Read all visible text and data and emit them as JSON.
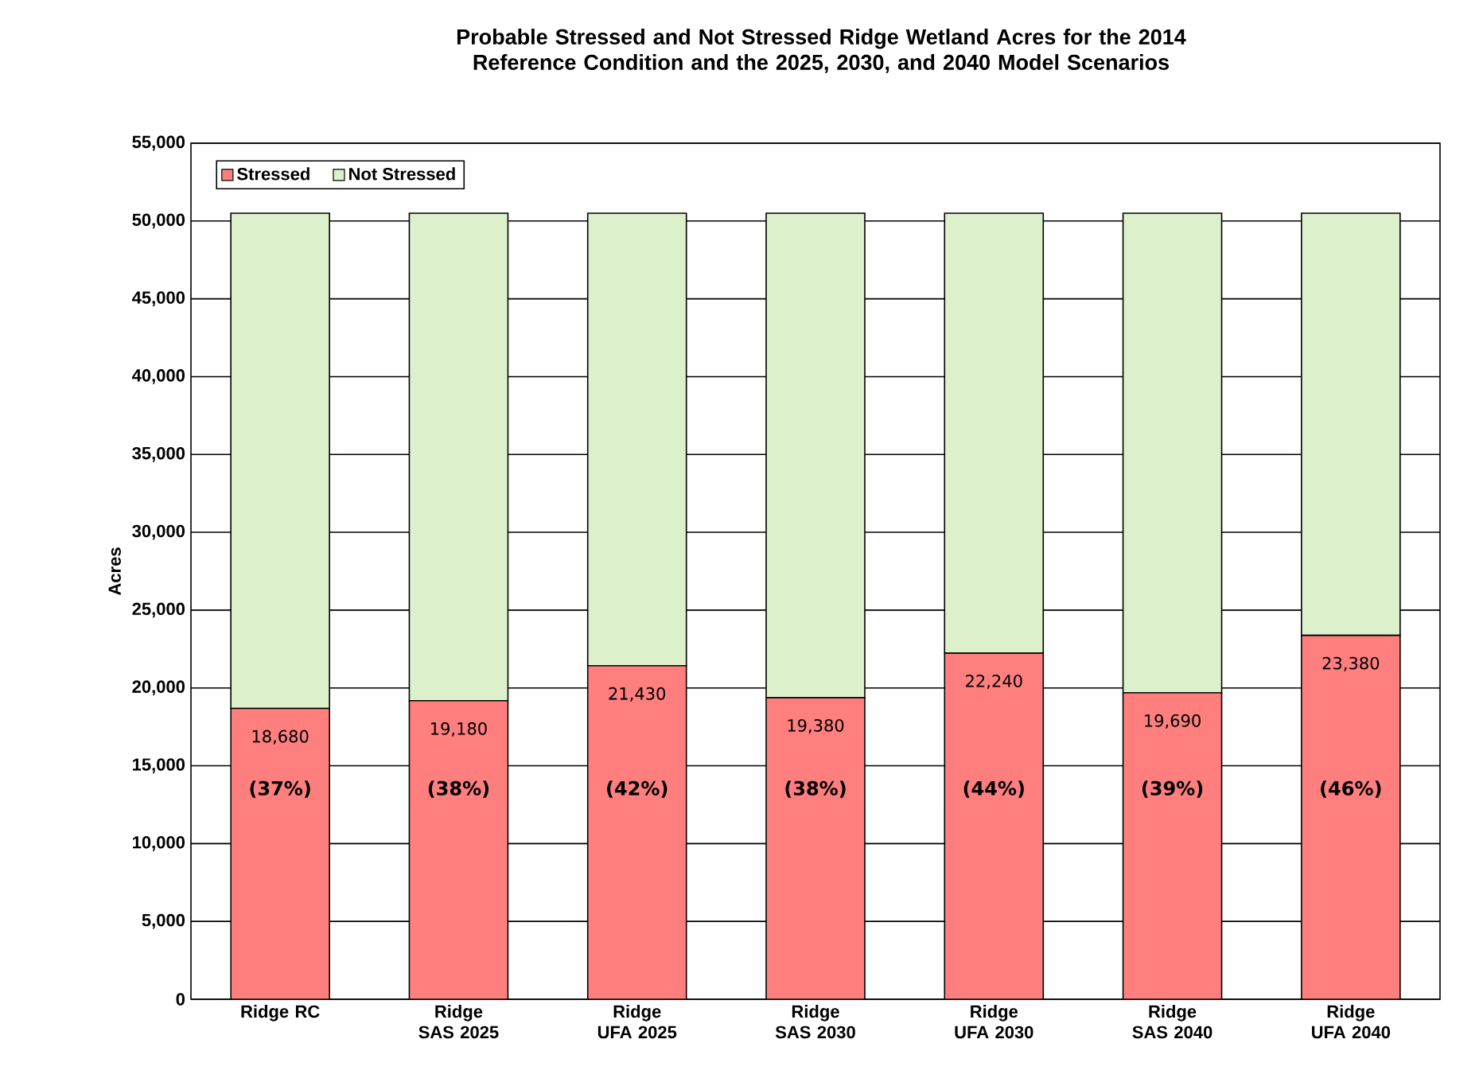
{
  "chart_data": {
    "type": "bar",
    "stacked": true,
    "title": "Probable Stressed and Not Stressed Ridge Wetland Acres for the 2014 Reference Condition and the 2025, 2030, and 2040 Model Scenarios",
    "ylabel": "Acres",
    "categories": [
      "Ridge RC",
      "Ridge SAS 2025",
      "Ridge UFA 2025",
      "Ridge SAS 2030",
      "Ridge UFA 2030",
      "Ridge SAS 2040",
      "Ridge UFA 2040"
    ],
    "series": [
      {
        "name": "Stressed",
        "color": "#ff7f7f",
        "values": [
          18680,
          19180,
          21430,
          19380,
          22240,
          19690,
          23380
        ],
        "value_labels": [
          "18,680",
          "19,180",
          "21,430",
          "19,380",
          "22,240",
          "19,690",
          "23,380"
        ]
      },
      {
        "name": "Not Stressed",
        "color": "#dcf0cc",
        "values": [
          31820,
          31320,
          29070,
          31120,
          28260,
          30810,
          27120
        ]
      }
    ],
    "annotations": [
      "(37%)",
      "(38%)",
      "(42%)",
      "(38%)",
      "(44%)",
      "(39%)",
      "(46%)"
    ],
    "ylim": [
      0,
      55000
    ],
    "yticks": [
      {
        "value": 0,
        "label": "0"
      },
      {
        "value": 5000,
        "label": "5,000"
      },
      {
        "value": 10000,
        "label": "10,000"
      },
      {
        "value": 15000,
        "label": "15,000"
      },
      {
        "value": 20000,
        "label": "20,000"
      },
      {
        "value": 25000,
        "label": "25,000"
      },
      {
        "value": 30000,
        "label": "30,000"
      },
      {
        "value": 35000,
        "label": "35,000"
      },
      {
        "value": 40000,
        "label": "40,000"
      },
      {
        "value": 45000,
        "label": "45,000"
      },
      {
        "value": 50000,
        "label": "50,000"
      },
      {
        "value": 55000,
        "label": "55,000"
      }
    ],
    "grid": "y",
    "legend": "top left"
  }
}
